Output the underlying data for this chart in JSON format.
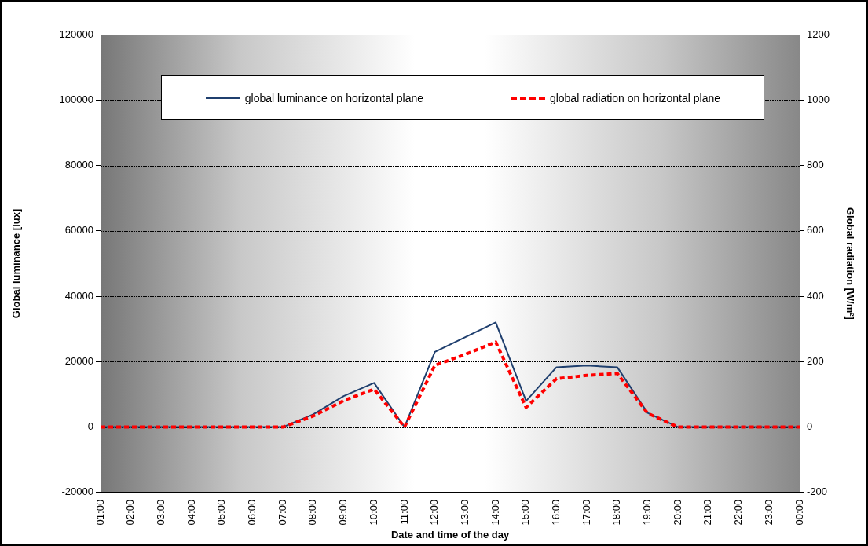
{
  "chart_data": {
    "type": "line",
    "xlabel": "Date and time of the day",
    "ylabel": "Global luminance [lux]",
    "y2label": "Global radiation [W/m²]",
    "categories": [
      "01:00",
      "02:00",
      "03:00",
      "04:00",
      "05:00",
      "06:00",
      "07:00",
      "08:00",
      "09:00",
      "10:00",
      "11:00",
      "12:00",
      "13:00",
      "14:00",
      "15:00",
      "16:00",
      "17:00",
      "18:00",
      "19:00",
      "20:00",
      "21:00",
      "22:00",
      "23:00",
      "00:00"
    ],
    "series": [
      {
        "name": "global luminance on horizontal plane",
        "color": "#1f3f6e",
        "line_style": "solid",
        "values": [
          0,
          0,
          0,
          0,
          0,
          0,
          0,
          3900,
          9500,
          13500,
          0,
          23000,
          27500,
          32000,
          8000,
          18300,
          18800,
          18300,
          4300,
          0,
          0,
          0,
          0,
          0
        ]
      },
      {
        "name": "global radiation on horizontal plane",
        "color": "#ff0000",
        "line_style": "dashed",
        "axis": "y2",
        "values": [
          0,
          0,
          0,
          0,
          0,
          0,
          0,
          34,
          81,
          116,
          0,
          189,
          222,
          260,
          60,
          148,
          158,
          164,
          42,
          0,
          0,
          0,
          0,
          0
        ]
      }
    ],
    "ylim": [
      -20000,
      120000
    ],
    "yticks": [
      -20000,
      0,
      20000,
      40000,
      60000,
      80000,
      100000,
      120000
    ],
    "y2lim": [
      -200,
      1200
    ],
    "y2ticks": [
      -200,
      0,
      200,
      400,
      600,
      800,
      1000,
      1200
    ],
    "grid": "y",
    "legend": "top",
    "marker": "none"
  }
}
